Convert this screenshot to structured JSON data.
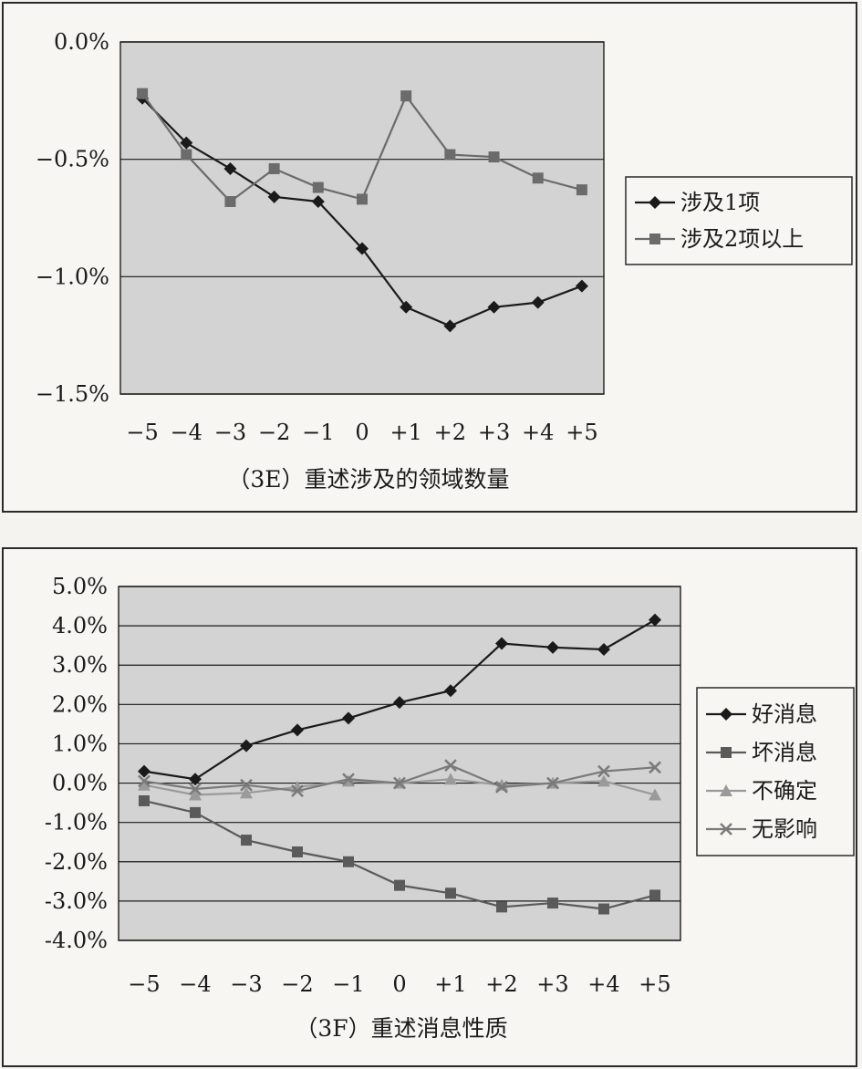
{
  "chart_data": [
    {
      "type": "line",
      "caption": "（3E）重述涉及的领域数量",
      "categories": [
        "−5",
        "−4",
        "−3",
        "−2",
        "−1",
        "0",
        "+1",
        "+2",
        "+3",
        "+4",
        "+5"
      ],
      "y_ticks": [
        "0.0%",
        "−0.5%",
        "−1.0%",
        "−1.5%"
      ],
      "ylim": [
        -1.5,
        0.0
      ],
      "grid": true,
      "legend_position": "right",
      "series": [
        {
          "name": "涉及1项",
          "marker": "diamond",
          "color": "#1a1a1a",
          "values": [
            -0.24,
            -0.43,
            -0.54,
            -0.66,
            -0.68,
            -0.88,
            -1.13,
            -1.21,
            -1.13,
            -1.11,
            -1.04
          ]
        },
        {
          "name": "涉及2项以上",
          "marker": "square",
          "color": "#6b6b6b",
          "values": [
            -0.22,
            -0.48,
            -0.68,
            -0.54,
            -0.62,
            -0.67,
            -0.23,
            -0.48,
            -0.49,
            -0.58,
            -0.63
          ]
        }
      ]
    },
    {
      "type": "line",
      "caption": "（3F）重述消息性质",
      "categories": [
        "−5",
        "−4",
        "−3",
        "−2",
        "−1",
        "0",
        "+1",
        "+2",
        "+3",
        "+4",
        "+5"
      ],
      "y_ticks": [
        "5.0%",
        "4.0%",
        "3.0%",
        "2.0%",
        "1.0%",
        "0.0%",
        "-1.0%",
        "-2.0%",
        "-3.0%",
        "-4.0%"
      ],
      "ylim": [
        -4.0,
        5.0
      ],
      "grid": true,
      "legend_position": "right",
      "series": [
        {
          "name": "好消息",
          "marker": "diamond",
          "color": "#1a1a1a",
          "values": [
            0.3,
            0.1,
            0.95,
            1.35,
            1.65,
            2.05,
            2.35,
            3.55,
            3.45,
            3.4,
            4.15
          ]
        },
        {
          "name": "坏消息",
          "marker": "square",
          "color": "#5a5a5a",
          "values": [
            -0.45,
            -0.75,
            -1.45,
            -1.75,
            -2.0,
            -2.6,
            -2.8,
            -3.15,
            -3.05,
            -3.2,
            -2.85
          ]
        },
        {
          "name": "不确定",
          "marker": "triangle",
          "color": "#9a9a9a",
          "values": [
            -0.05,
            -0.3,
            -0.25,
            -0.1,
            0.05,
            0.0,
            0.1,
            -0.05,
            0.0,
            0.05,
            -0.3
          ]
        },
        {
          "name": "无影响",
          "marker": "x",
          "color": "#7a7a7a",
          "values": [
            0.05,
            -0.15,
            -0.05,
            -0.2,
            0.1,
            0.0,
            0.45,
            -0.1,
            0.0,
            0.3,
            0.4
          ]
        }
      ]
    }
  ]
}
